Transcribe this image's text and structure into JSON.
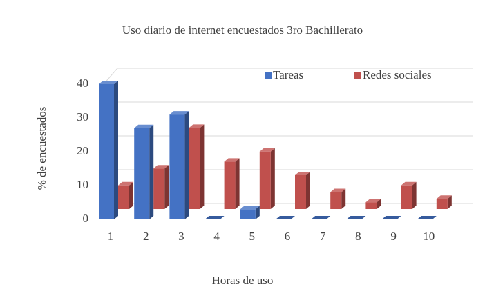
{
  "chart_data": {
    "type": "bar3d",
    "title": "Uso diario de internet encuestados 3ro Bachillerato",
    "x_label": "Horas de uso",
    "y_label": "% de encuestados",
    "categories": [
      "1",
      "2",
      "3",
      "4",
      "5",
      "6",
      "7",
      "8",
      "9",
      "10"
    ],
    "series": [
      {
        "name": "Tareas",
        "color": "#4472c4",
        "values": [
          40,
          27,
          31,
          0,
          3,
          0,
          0,
          0,
          0,
          0
        ]
      },
      {
        "name": "Redes sociales",
        "color": "#c0504d",
        "values": [
          7,
          12,
          24,
          14,
          17,
          10,
          5,
          2,
          7,
          3
        ]
      }
    ],
    "ylim": [
      0,
      40
    ],
    "yticks": [
      0,
      10,
      20,
      30,
      40
    ],
    "grid": true,
    "legend": "top-right"
  }
}
